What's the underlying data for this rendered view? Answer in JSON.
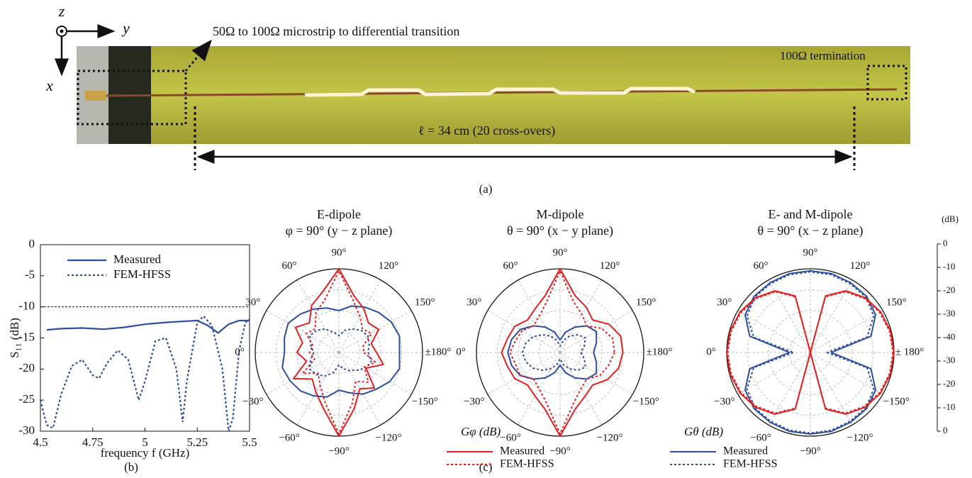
{
  "photo": {
    "axes": [
      "z",
      "y",
      "x"
    ],
    "transition_label": "50Ω to 100Ω microstrip to differential transition",
    "termination_label": "100Ω termination",
    "length_label": "ℓ = 34 cm (20 cross-overs)"
  },
  "captions": [
    "(a)",
    "(b)",
    "(c)"
  ],
  "legends": [
    {
      "title": "Gφ (dB)",
      "entries": [
        {
          "name": "Measured",
          "color": "#e02020",
          "dash": "solid"
        },
        {
          "name": "FEM-HFSS",
          "color": "#e02020",
          "dash": "dotted"
        }
      ]
    },
    {
      "title": "Gθ (dB)",
      "entries": [
        {
          "name": "Measured",
          "color": "#2b4ea0",
          "dash": "solid"
        },
        {
          "name": "FEM-HFSS",
          "color": "#2b4ea0",
          "dash": "dotted"
        }
      ]
    }
  ],
  "radial_scale": {
    "label": "(dB)",
    "ticks": [
      0,
      -10,
      -20,
      -30,
      -40,
      -30,
      -20,
      -10,
      0
    ]
  },
  "chart_data": [
    {
      "type": "line",
      "xlabel": "frequency f (GHz)",
      "ylabel": "S₁₁ (dB)",
      "xlim": [
        4.5,
        5.5
      ],
      "ylim": [
        -30,
        0
      ],
      "xticks": [
        4.5,
        4.75,
        5,
        5.25,
        5.5
      ],
      "yticks": [
        0,
        -5,
        -10,
        -15,
        -20,
        -25,
        -30
      ],
      "reference_line": -10,
      "series": [
        {
          "name": "Measured",
          "color": "#2b4ea0",
          "dash": "solid",
          "x": [
            4.53,
            4.6,
            4.7,
            4.8,
            4.9,
            5.0,
            5.1,
            5.2,
            5.25,
            5.3,
            5.35,
            5.4,
            5.45,
            5.5
          ],
          "values": [
            -13.7,
            -13.5,
            -13.4,
            -13.6,
            -13.3,
            -12.8,
            -12.5,
            -12.3,
            -12.2,
            -13.0,
            -14.2,
            -12.8,
            -12.2,
            -12.2
          ]
        },
        {
          "name": "FEM-HFSS",
          "color": "#2b4ea0",
          "dash": "dotted",
          "x": [
            4.5,
            4.53,
            4.56,
            4.6,
            4.65,
            4.7,
            4.75,
            4.78,
            4.82,
            4.87,
            4.92,
            4.97,
            5.0,
            5.05,
            5.1,
            5.15,
            5.18,
            5.2,
            5.25,
            5.28,
            5.32,
            5.37,
            5.4,
            5.42,
            5.45,
            5.48,
            5.5
          ],
          "values": [
            -25,
            -29,
            -29.5,
            -24,
            -19.5,
            -18.5,
            -21,
            -21.5,
            -19,
            -17,
            -18.5,
            -25,
            -22,
            -15.5,
            -15,
            -20,
            -28.5,
            -22,
            -12.5,
            -11.5,
            -13,
            -20,
            -30,
            -28,
            -17,
            -12.5,
            -12
          ]
        }
      ]
    },
    {
      "type": "polar",
      "title": [
        "E-dipole",
        "φ = 90° (y − z plane)"
      ],
      "rlim": [
        -40,
        0
      ],
      "rticks": [
        -30,
        -20,
        -10
      ],
      "thetaticks": [
        {
          "value": 0,
          "label": "0°"
        },
        {
          "value": 30,
          "label": "30°"
        },
        {
          "value": 60,
          "label": "60°"
        },
        {
          "value": 90,
          "label": "90°"
        },
        {
          "value": 120,
          "label": "120°"
        },
        {
          "value": 150,
          "label": "150°"
        },
        {
          "value": 180,
          "label": "±180°"
        },
        {
          "value": -150,
          "label": "−150°"
        },
        {
          "value": -120,
          "label": "−120°"
        },
        {
          "value": -90,
          "label": "−90°"
        },
        {
          "value": -60,
          "label": "−60°"
        },
        {
          "value": -30,
          "label": "−30°"
        }
      ],
      "theta": [
        -180,
        -165,
        -150,
        -135,
        -120,
        -105,
        -90,
        -75,
        -60,
        -45,
        -30,
        -15,
        0,
        15,
        30,
        45,
        60,
        75,
        90,
        105,
        120,
        135,
        150,
        165
      ],
      "series": [
        {
          "name": "Measured",
          "legend": "Gθ (dB)",
          "color": "#2b4ea0",
          "dash": "solid",
          "values": [
            -11,
            -10,
            -12,
            -15,
            -17,
            -20,
            -22,
            -18,
            -16,
            -14,
            -13,
            -12,
            -14,
            -13,
            -12,
            -14,
            -16,
            -18,
            -20,
            -17,
            -15,
            -13,
            -11,
            -10
          ]
        },
        {
          "name": "FEM-HFSS",
          "legend": "Gθ (dB)",
          "color": "#2b4ea0",
          "dash": "dotted",
          "values": [
            -26,
            -24,
            -25,
            -28,
            -30,
            -32,
            -34,
            -30,
            -27,
            -25,
            -24,
            -26,
            -28,
            -26,
            -24,
            -25,
            -27,
            -30,
            -32,
            -29,
            -27,
            -25,
            -24,
            -25
          ]
        },
        {
          "name": "Measured",
          "legend": "Gφ (dB)",
          "color": "#e02020",
          "dash": "solid",
          "values": [
            -22,
            -18,
            -25,
            -16,
            -20,
            -12,
            0,
            -12,
            -18,
            -22,
            -15,
            -24,
            -20,
            -22,
            -16,
            -20,
            -14,
            -10,
            0,
            -12,
            -16,
            -20,
            -18,
            -24
          ]
        },
        {
          "name": "FEM-HFSS",
          "legend": "Gφ (dB)",
          "color": "#e02020",
          "dash": "dotted",
          "values": [
            -28,
            -22,
            -26,
            -20,
            -24,
            -15,
            -1,
            -15,
            -22,
            -26,
            -20,
            -28,
            -26,
            -27,
            -22,
            -24,
            -18,
            -14,
            -1,
            -14,
            -20,
            -24,
            -22,
            -28
          ]
        }
      ]
    },
    {
      "type": "polar",
      "title": [
        "M-dipole",
        "θ = 90° (x − y plane)"
      ],
      "rlim": [
        -40,
        0
      ],
      "rticks": [
        -30,
        -20,
        -10
      ],
      "thetaticks": [
        {
          "value": 0,
          "label": "0°"
        },
        {
          "value": 30,
          "label": "30°"
        },
        {
          "value": 60,
          "label": "60°"
        },
        {
          "value": 90,
          "label": "90°"
        },
        {
          "value": 120,
          "label": "120°"
        },
        {
          "value": 150,
          "label": "150°"
        },
        {
          "value": 180,
          "label": "±180°"
        },
        {
          "value": -150,
          "label": "−150°"
        },
        {
          "value": -120,
          "label": "−120°"
        },
        {
          "value": -90,
          "label": "−90°"
        },
        {
          "value": -60,
          "label": "−60°"
        },
        {
          "value": -30,
          "label": "−30°"
        }
      ],
      "theta": [
        -180,
        -165,
        -150,
        -135,
        -120,
        -105,
        -90,
        -75,
        -60,
        -45,
        -30,
        -15,
        0,
        15,
        30,
        45,
        60,
        75,
        90,
        105,
        120,
        135,
        150,
        165
      ],
      "series": [
        {
          "name": "Measured",
          "legend": "Gθ (dB)",
          "color": "#2b4ea0",
          "dash": "solid",
          "values": [
            -24,
            -22,
            -20,
            -22,
            -26,
            -30,
            -34,
            -30,
            -26,
            -22,
            -18,
            -16,
            -15,
            -16,
            -18,
            -22,
            -26,
            -30,
            -34,
            -30,
            -26,
            -22,
            -20,
            -22
          ]
        },
        {
          "name": "FEM-HFSS",
          "legend": "Gθ (dB)",
          "color": "#2b4ea0",
          "dash": "dotted",
          "values": [
            -30,
            -28,
            -26,
            -28,
            -31,
            -34,
            -37,
            -34,
            -31,
            -28,
            -25,
            -23,
            -22,
            -23,
            -25,
            -28,
            -31,
            -34,
            -37,
            -34,
            -31,
            -28,
            -26,
            -28
          ]
        },
        {
          "name": "Measured",
          "legend": "Gφ (dB)",
          "color": "#e02020",
          "dash": "solid",
          "values": [
            -10,
            -11,
            -14,
            -18,
            -16,
            -12,
            0,
            -12,
            -16,
            -18,
            -15,
            -14,
            -12,
            -14,
            -15,
            -18,
            -16,
            -12,
            0,
            -12,
            -15,
            -18,
            -13,
            -10
          ]
        },
        {
          "name": "FEM-HFSS",
          "legend": "Gφ (dB)",
          "color": "#e02020",
          "dash": "dotted",
          "values": [
            -14,
            -16,
            -18,
            -22,
            -20,
            -15,
            -1,
            -15,
            -20,
            -22,
            -18,
            -18,
            -16,
            -18,
            -19,
            -22,
            -20,
            -15,
            -1,
            -15,
            -19,
            -22,
            -17,
            -14
          ]
        }
      ]
    },
    {
      "type": "polar",
      "title": [
        "E- and M-dipole",
        "θ = 90° (x − z plane)"
      ],
      "rlim": [
        -40,
        0
      ],
      "rticks": [
        -30,
        -20,
        -10
      ],
      "thetaticks": [
        {
          "value": 0,
          "label": "0°"
        },
        {
          "value": 30,
          "label": "30°"
        },
        {
          "value": 60,
          "label": "60°"
        },
        {
          "value": 90,
          "label": "90°"
        },
        {
          "value": 120,
          "label": "120°"
        },
        {
          "value": 150,
          "label": "150°"
        },
        {
          "value": 180,
          "label": "± 180°"
        },
        {
          "value": -150,
          "label": "−150°"
        },
        {
          "value": -120,
          "label": "−120°"
        },
        {
          "value": -90,
          "label": "−90°"
        },
        {
          "value": -60,
          "label": "−60°"
        },
        {
          "value": -30,
          "label": "−30°"
        }
      ],
      "theta": [
        -180,
        -165,
        -150,
        -135,
        -120,
        -105,
        -90,
        -75,
        -60,
        -45,
        -30,
        -15,
        0,
        15,
        30,
        45,
        60,
        75,
        90,
        105,
        120,
        135,
        150,
        165
      ],
      "series": [
        {
          "name": "Measured",
          "legend": "Gθ (dB)",
          "color": "#2b4ea0",
          "dash": "solid",
          "values": [
            -30,
            -10,
            -4,
            -2,
            -1.5,
            -1,
            -1,
            -1,
            -1.5,
            -2,
            -4,
            -10,
            -30,
            -10,
            -4,
            -2,
            -1.5,
            -1,
            -1,
            -1,
            -1.5,
            -2,
            -4,
            -10
          ]
        },
        {
          "name": "FEM-HFSS",
          "legend": "Gθ (dB)",
          "color": "#2b4ea0",
          "dash": "dotted",
          "values": [
            -32,
            -12,
            -5,
            -2.5,
            -2,
            -1.5,
            -1.5,
            -1.5,
            -2,
            -2.5,
            -5,
            -12,
            -32,
            -12,
            -5,
            -2.5,
            -2,
            -1.5,
            -1.5,
            -1.5,
            -2,
            -2.5,
            -5,
            -12
          ]
        },
        {
          "name": "Measured",
          "legend": "Gφ (dB)",
          "color": "#e02020",
          "dash": "solid",
          "values": [
            0,
            -0.3,
            -1.2,
            -3,
            -6,
            -12,
            -40,
            -12,
            -6,
            -3,
            -1.2,
            -0.3,
            0,
            -0.3,
            -1.2,
            -3,
            -6,
            -12,
            -40,
            -12,
            -6,
            -3,
            -1.2,
            -0.3
          ]
        },
        {
          "name": "FEM-HFSS",
          "legend": "Gφ (dB)",
          "color": "#e02020",
          "dash": "dotted",
          "values": [
            -0.5,
            -0.8,
            -1.7,
            -3.5,
            -6.5,
            -12.5,
            -40,
            -12.5,
            -6.5,
            -3.5,
            -1.7,
            -0.8,
            -0.5,
            -0.8,
            -1.7,
            -3.5,
            -6.5,
            -12.5,
            -40,
            -12.5,
            -6.5,
            -3.5,
            -1.7,
            -0.8
          ]
        }
      ]
    }
  ]
}
